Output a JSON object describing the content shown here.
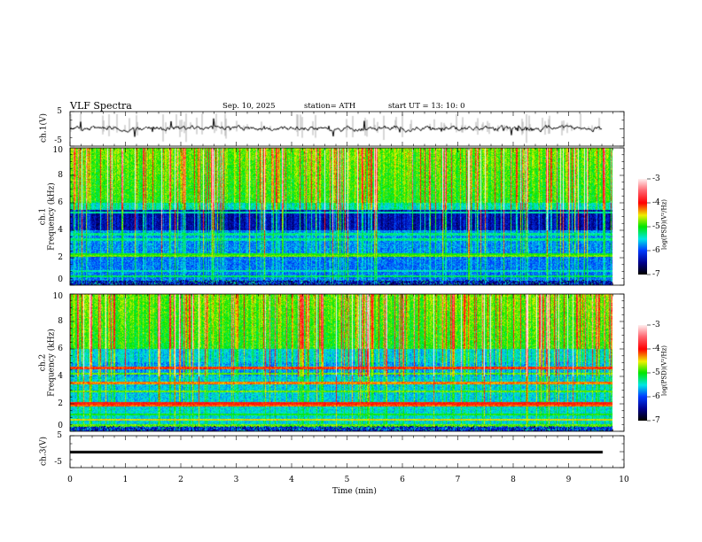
{
  "header": {
    "title": "VLF  Spectra",
    "date": "Sep. 10, 2025",
    "station": "station= ATH",
    "start": "start  UT  =    13: 10: 0"
  },
  "panels": {
    "ch1_wave": {
      "ylabel": "ch.1(V)",
      "yticks": [
        "5",
        "-5"
      ]
    },
    "ch1_spec": {
      "ylabel_top": "ch.1",
      "ylabel": "Frequency  (kHz)",
      "yticks": [
        "10",
        "8",
        "6",
        "4",
        "2",
        "0"
      ]
    },
    "ch2_spec": {
      "ylabel_top": "ch.2",
      "ylabel": "Frequency  (kHz)",
      "yticks": [
        "10",
        "8",
        "6",
        "4",
        "2",
        "0"
      ]
    },
    "ch3_wave": {
      "ylabel": "ch.3(V)",
      "yticks": [
        "5",
        "-5"
      ]
    }
  },
  "colorbar": {
    "label": "log(PSD)(V²/Hz)",
    "ticks": [
      "-3",
      "-4",
      "-5",
      "-6",
      "-7"
    ]
  },
  "chart_data": {
    "type": "heatmap",
    "title": "VLF  Spectra",
    "xlabel": "Time  (min)",
    "xlim": [
      0,
      10
    ],
    "xticks": [
      "0",
      "1",
      "2",
      "3",
      "4",
      "5",
      "6",
      "7",
      "8",
      "9",
      "10"
    ],
    "data_end_min": 9.8,
    "frequency_range_khz": [
      0,
      10
    ],
    "psd_log_range": [
      -7,
      -3
    ],
    "waveform_range_v": [
      -5,
      5
    ],
    "ch3_level_v": 0
  }
}
